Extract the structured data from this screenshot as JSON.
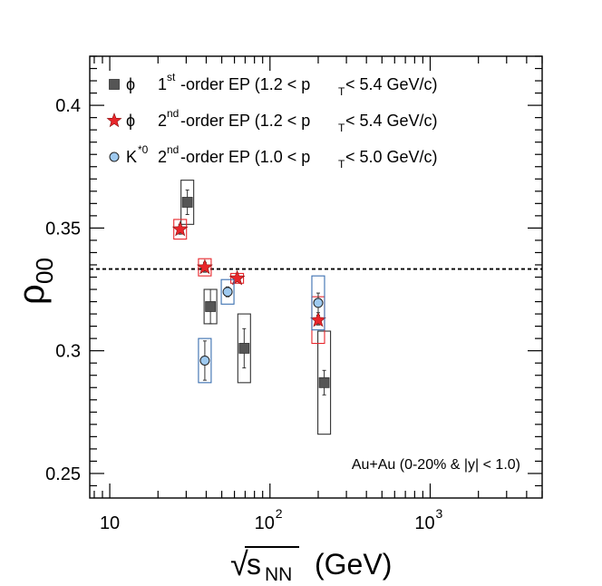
{
  "chart_data": {
    "type": "scatter",
    "title": "",
    "xscale": "log",
    "xlim": [
      7.5,
      5000
    ],
    "ylim": [
      0.24,
      0.42
    ],
    "xlabel_sqrt": "√",
    "xlabel_s": "s",
    "xlabel_sub": "NN",
    "xlabel_unit": "(GeV)",
    "ylabel_main": "ρ",
    "ylabel_sub": "00",
    "x_ticks": [
      {
        "value": 10,
        "base": "10",
        "exp": ""
      },
      {
        "value": 100,
        "base": "10",
        "exp": "2"
      },
      {
        "value": 1000,
        "base": "10",
        "exp": "3"
      }
    ],
    "y_ticks": [
      {
        "value": 0.25,
        "label": "0.25"
      },
      {
        "value": 0.3,
        "label": "0.3"
      },
      {
        "value": 0.35,
        "label": "0.35"
      },
      {
        "value": 0.4,
        "label": "0.4"
      }
    ],
    "reference_line": {
      "y": 0.3333,
      "style": "dashed"
    },
    "annotation": "Au+Au (0-20% & |y| < 1.0)",
    "series": [
      {
        "name": "φ 1st-order EP (1.2 < pT < 5.4 GeV/c)",
        "legend_particle": "ϕ",
        "legend_order": "1",
        "legend_order_sup": "st",
        "legend_text_a": "-order EP (1.2 < p",
        "legend_text_sub": "T",
        "legend_text_b": " < 5.4 GeV/c)",
        "marker": "square",
        "color": "#555555",
        "box_color": "#333333",
        "points": [
          {
            "x": 30.5,
            "y": 0.3605,
            "stat": 0.005,
            "sys": 0.009
          },
          {
            "x": 42.5,
            "y": 0.318,
            "stat": 0.007,
            "sys": 0.007
          },
          {
            "x": 69,
            "y": 0.301,
            "stat": 0.008,
            "sys": 0.014
          },
          {
            "x": 218,
            "y": 0.287,
            "stat": 0.005,
            "sys": 0.021
          }
        ]
      },
      {
        "name": "φ 2nd-order EP (1.2 < pT < 5.4 GeV/c)",
        "legend_particle": "ϕ",
        "legend_order": "2",
        "legend_order_sup": "nd",
        "legend_text_a": "-order EP (1.2 < p",
        "legend_text_sub": "T",
        "legend_text_b": " < 5.4 GeV/c)",
        "marker": "star",
        "color": "#e8262b",
        "box_color": "#e8262b",
        "points": [
          {
            "x": 27.5,
            "y": 0.3495,
            "stat": 0.002,
            "sys": 0.004
          },
          {
            "x": 39.2,
            "y": 0.334,
            "stat": 0.002,
            "sys": 0.0035
          },
          {
            "x": 62.4,
            "y": 0.3295,
            "stat": 0.001,
            "sys": 0.002
          },
          {
            "x": 200,
            "y": 0.3125,
            "stat": 0.002,
            "sys": 0.0095
          }
        ]
      },
      {
        "name": "K*0 2nd-order EP (1.0 < pT < 5.0 GeV/c)",
        "legend_particle": "K",
        "legend_particle_sup": "*0",
        "legend_order": "2",
        "legend_order_sup": "nd",
        "legend_text_a": "-order EP (1.0 < p",
        "legend_text_sub": "T",
        "legend_text_b": " < 5.0 GeV/c)",
        "marker": "circle",
        "color": "#9ec9ef",
        "box_color": "#3a6fb0",
        "points": [
          {
            "x": 39.2,
            "y": 0.296,
            "stat": 0.008,
            "sys": 0.009
          },
          {
            "x": 54.4,
            "y": 0.324,
            "stat": 0.002,
            "sys": 0.005
          },
          {
            "x": 200,
            "y": 0.3195,
            "stat": 0.004,
            "sys": 0.011
          }
        ]
      }
    ]
  }
}
